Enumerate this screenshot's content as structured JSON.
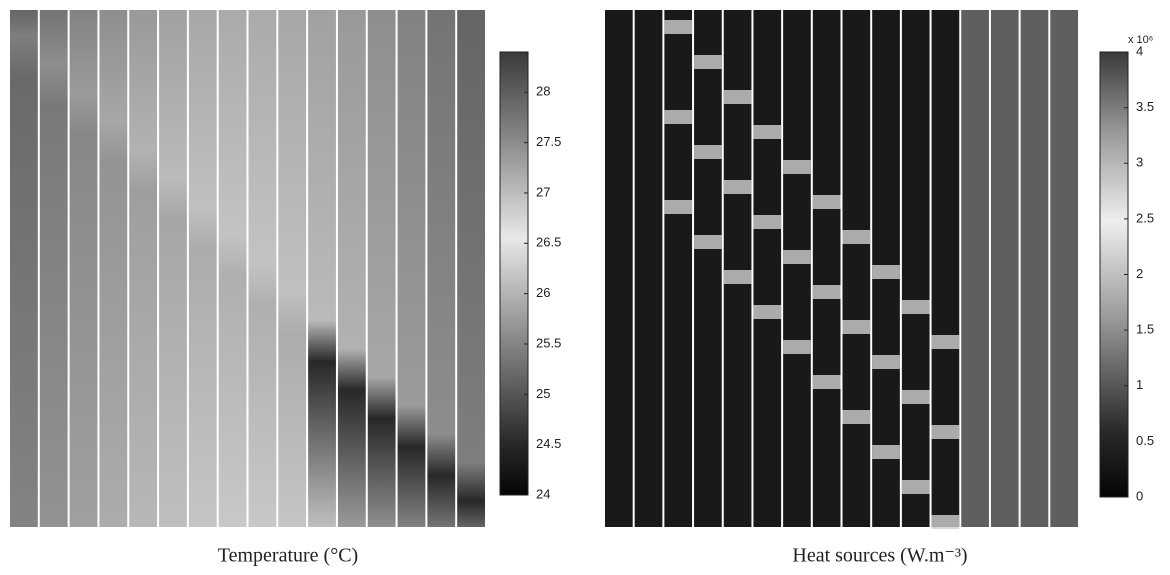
{
  "chart_data": [
    {
      "type": "heatmap",
      "title": "Temperature (°C)",
      "clim": [
        24,
        28.4
      ],
      "cticks": [
        24,
        24.5,
        25,
        25.5,
        26,
        26.5,
        27,
        27.5,
        28
      ]
    },
    {
      "type": "heatmap",
      "title": "Heat sources (W.m⁻³)",
      "colorbar_label": "x 10⁶",
      "clim": [
        0,
        4
      ],
      "cticks": [
        0,
        0.5,
        1,
        1.5,
        2,
        2.5,
        3,
        3.5,
        4
      ]
    }
  ]
}
